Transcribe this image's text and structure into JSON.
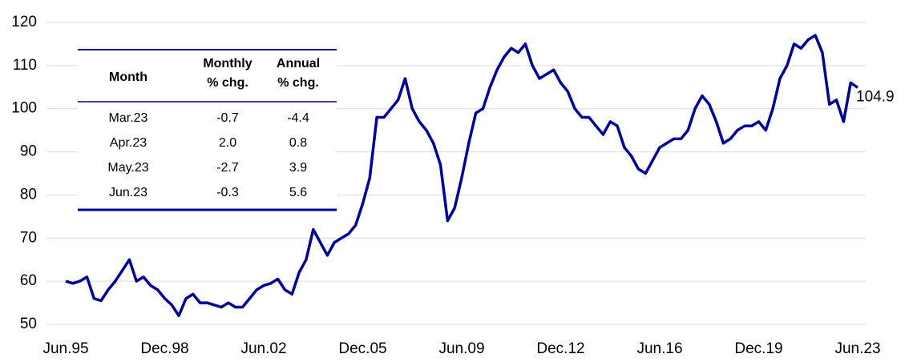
{
  "chart_data": {
    "type": "line",
    "categories": [
      "Jun.95",
      null,
      null,
      null,
      null,
      null,
      null,
      null,
      null,
      null,
      null,
      null,
      null,
      null,
      "Dec.98",
      null,
      null,
      null,
      null,
      null,
      null,
      null,
      null,
      null,
      null,
      null,
      null,
      null,
      "Jun.02",
      null,
      null,
      null,
      null,
      null,
      null,
      null,
      null,
      null,
      null,
      null,
      null,
      null,
      "Dec.05",
      null,
      null,
      null,
      null,
      null,
      null,
      null,
      null,
      null,
      null,
      null,
      null,
      null,
      "Jun.09",
      null,
      null,
      null,
      null,
      null,
      null,
      null,
      null,
      null,
      null,
      null,
      null,
      null,
      "Dec.12",
      null,
      null,
      null,
      null,
      null,
      null,
      null,
      null,
      null,
      null,
      null,
      null,
      null,
      "Jun.16",
      null,
      null,
      null,
      null,
      null,
      null,
      null,
      null,
      null,
      null,
      null,
      null,
      null,
      "Dec.19",
      null,
      null,
      null,
      null,
      null,
      null,
      null,
      null,
      null,
      null,
      null,
      null,
      null,
      "Jun.23"
    ],
    "series": [
      {
        "color": "#000099",
        "values": [
          60,
          59.5,
          60,
          61,
          56,
          55.5,
          58,
          60,
          62.5,
          65,
          60,
          61,
          59,
          58,
          56,
          54.5,
          52,
          56,
          57,
          55,
          55,
          54.5,
          54,
          55,
          54,
          54,
          56,
          58,
          59,
          59.5,
          60.5,
          58,
          57,
          62,
          65,
          72,
          69,
          66,
          69,
          70,
          71,
          73,
          78,
          84,
          98,
          98,
          100,
          102,
          107,
          100,
          97,
          95,
          92,
          87,
          74,
          77,
          84,
          92,
          99,
          100,
          105,
          109,
          112,
          114,
          113,
          115,
          110,
          107,
          108,
          109,
          106,
          104,
          100,
          98,
          98,
          96,
          94,
          97,
          96,
          91,
          89,
          86,
          85,
          88,
          91,
          92,
          93,
          93,
          95,
          100,
          103,
          101,
          97,
          92,
          93,
          95,
          96,
          96,
          97,
          95,
          100,
          107,
          110,
          115,
          114,
          116,
          117,
          113,
          101,
          102,
          97,
          106,
          104.9
        ]
      }
    ],
    "ylim": [
      50,
      120
    ],
    "yticks": [
      50,
      60,
      70,
      80,
      90,
      100,
      110,
      120
    ],
    "grid": true
  },
  "table": {
    "header": [
      [
        "Month"
      ],
      [
        "Monthly",
        "% chg."
      ],
      [
        "Annual",
        "% chg."
      ]
    ],
    "rows": [
      [
        "Mar.23",
        "-0.7",
        "-4.4"
      ],
      [
        "Apr.23",
        "2.0",
        "0.8"
      ],
      [
        "May.23",
        "-2.7",
        "3.9"
      ],
      [
        "Jun.23",
        "-0.3",
        "5.6"
      ]
    ]
  }
}
